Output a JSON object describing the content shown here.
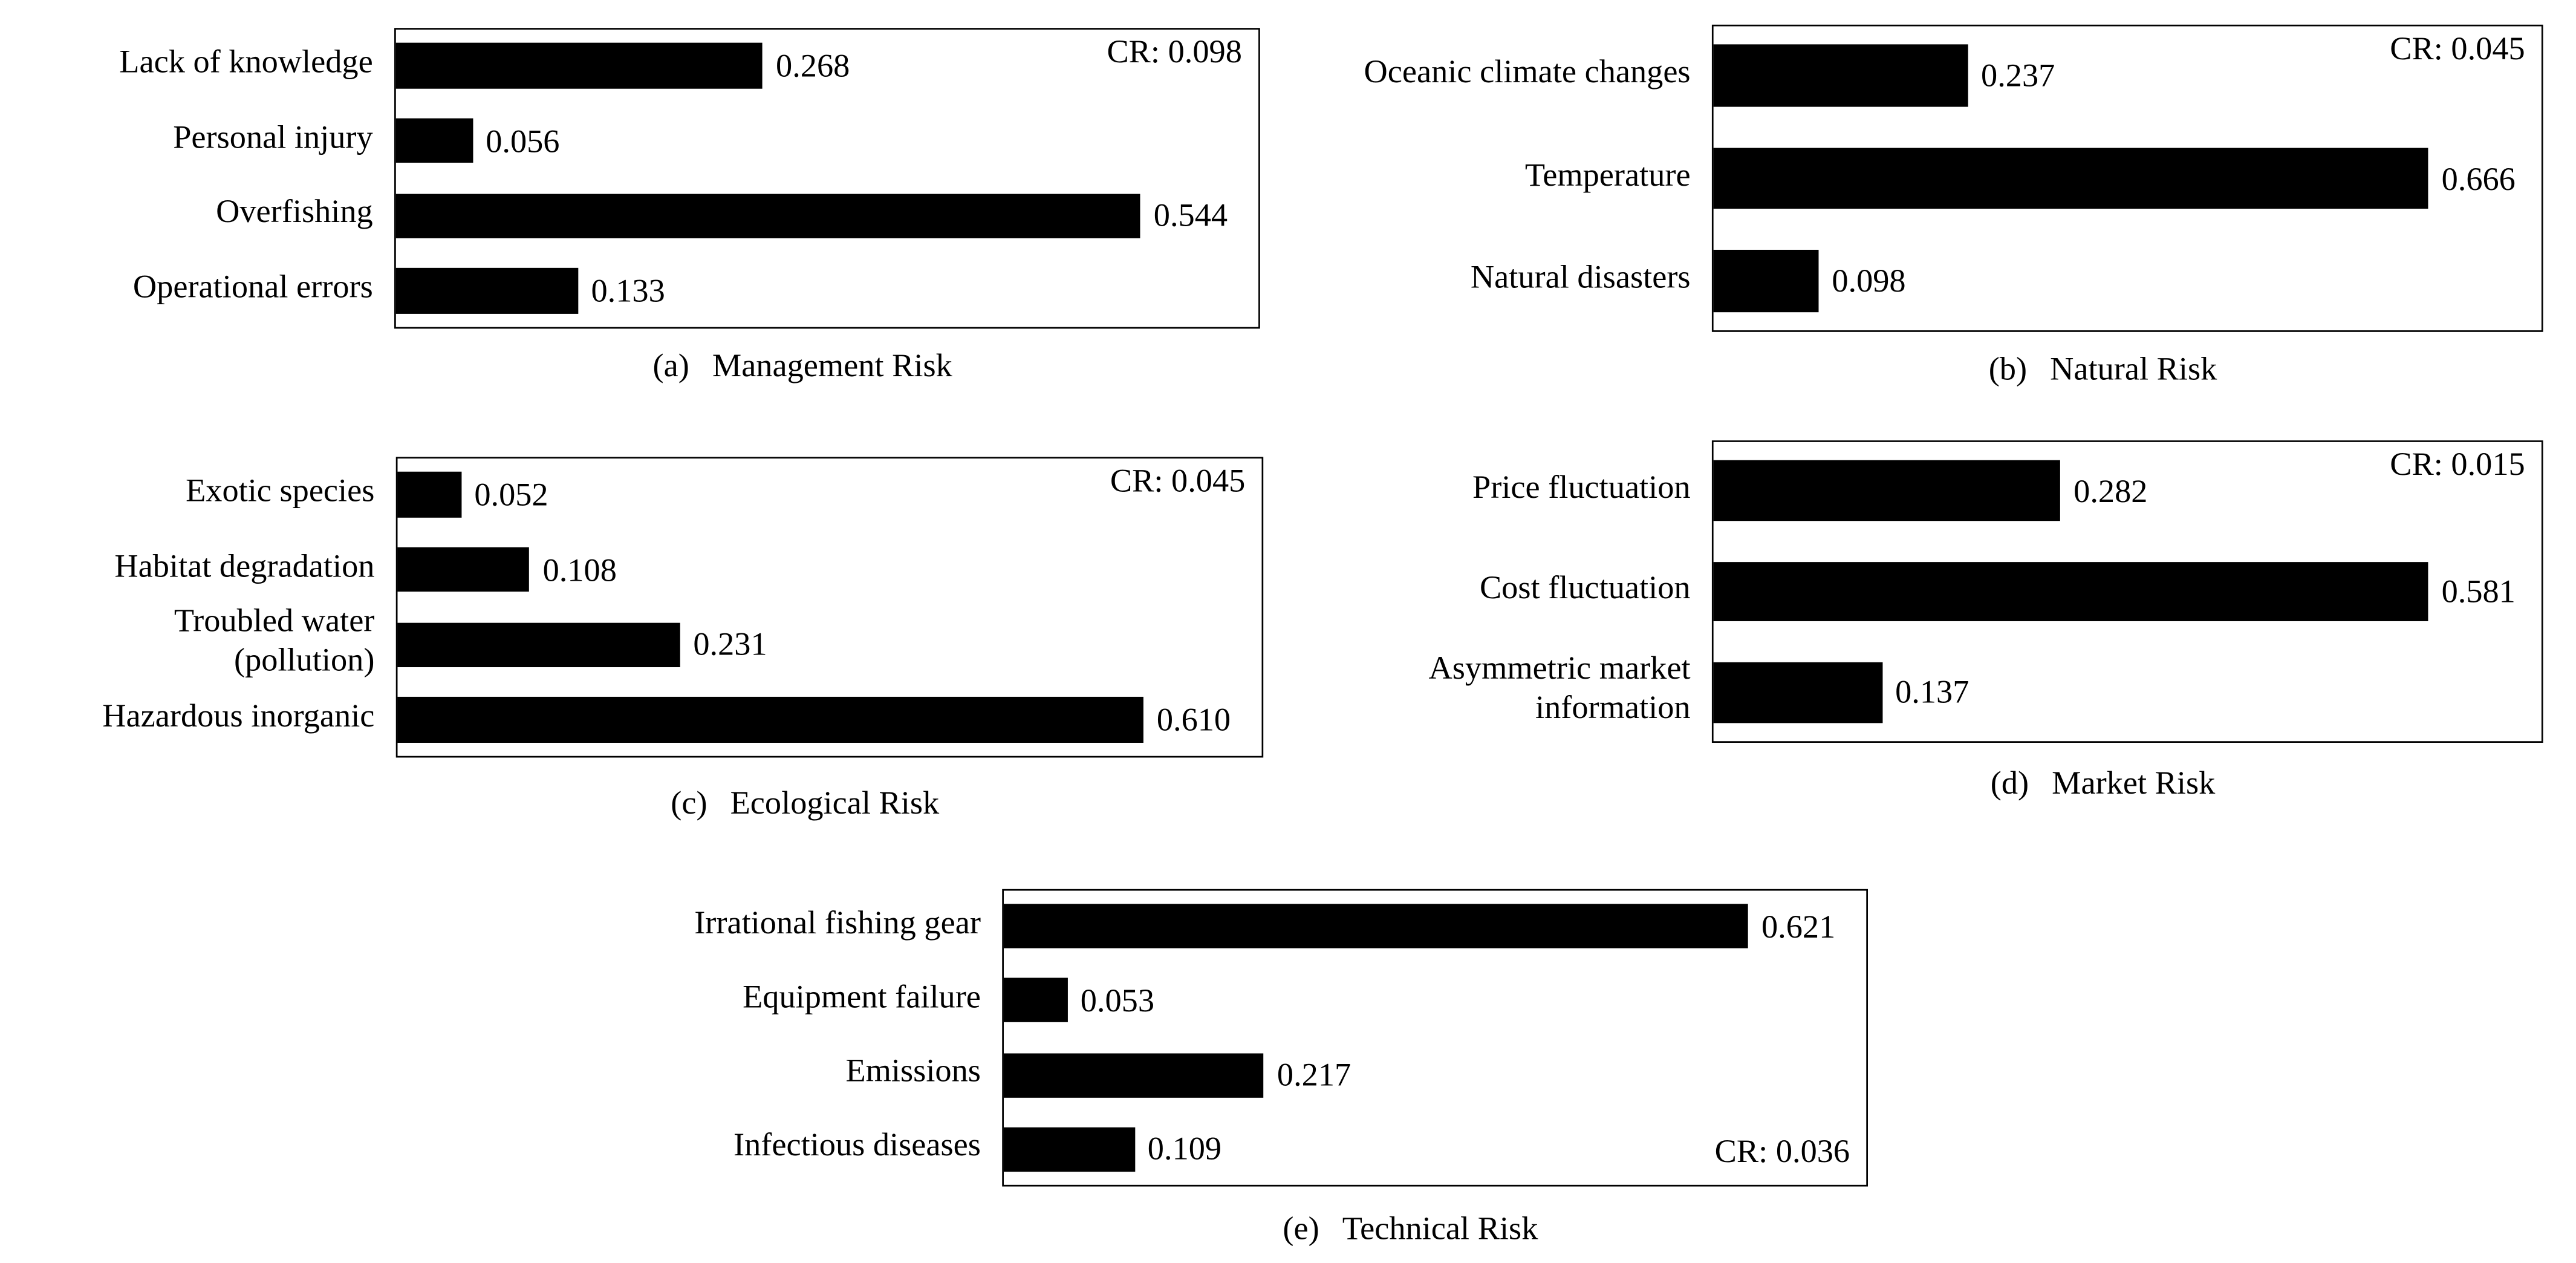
{
  "chart_data": [
    {
      "type": "barh",
      "label": "(a)",
      "title": "Management Risk",
      "annotation": "CR: 0.098",
      "annotation_position": "top-right",
      "categories": [
        "Lack of knowledge",
        "Personal injury",
        "Overfishing",
        "Operational errors"
      ],
      "values": [
        0.268,
        0.056,
        0.544,
        0.133
      ],
      "color": "#000000"
    },
    {
      "type": "barh",
      "label": "(b)",
      "title": "Natural Risk",
      "annotation": "CR: 0.045",
      "annotation_position": "top-right",
      "categories": [
        "Oceanic climate changes",
        "Temperature",
        "Natural disasters"
      ],
      "values": [
        0.237,
        0.666,
        0.098
      ],
      "color": "#000000"
    },
    {
      "type": "barh",
      "label": "(c)",
      "title": "Ecological Risk",
      "annotation": "CR: 0.045",
      "annotation_position": "top-right",
      "categories": [
        "Exotic species",
        "Habitat degradation",
        "Troubled water\n(pollution)",
        "Hazardous inorganic"
      ],
      "values": [
        0.052,
        0.108,
        0.231,
        0.61
      ],
      "value_labels": [
        "0.052",
        "0.108",
        "0.231",
        "0.610"
      ],
      "color": "#000000"
    },
    {
      "type": "barh",
      "label": "(d)",
      "title": "Market Risk",
      "annotation": "CR: 0.015",
      "annotation_position": "top-right",
      "categories": [
        "Price fluctuation",
        "Cost fluctuation",
        "Asymmetric market\ninformation"
      ],
      "values": [
        0.282,
        0.581,
        0.137
      ],
      "color": "#000000"
    },
    {
      "type": "barh",
      "label": "(e)",
      "title": "Technical Risk",
      "annotation": "CR: 0.036",
      "annotation_position": "bottom-right",
      "categories": [
        "Irrational fishing gear",
        "Equipment failure",
        "Emissions",
        "Infectious diseases"
      ],
      "values": [
        0.621,
        0.053,
        0.217,
        0.109
      ],
      "color": "#000000"
    }
  ]
}
